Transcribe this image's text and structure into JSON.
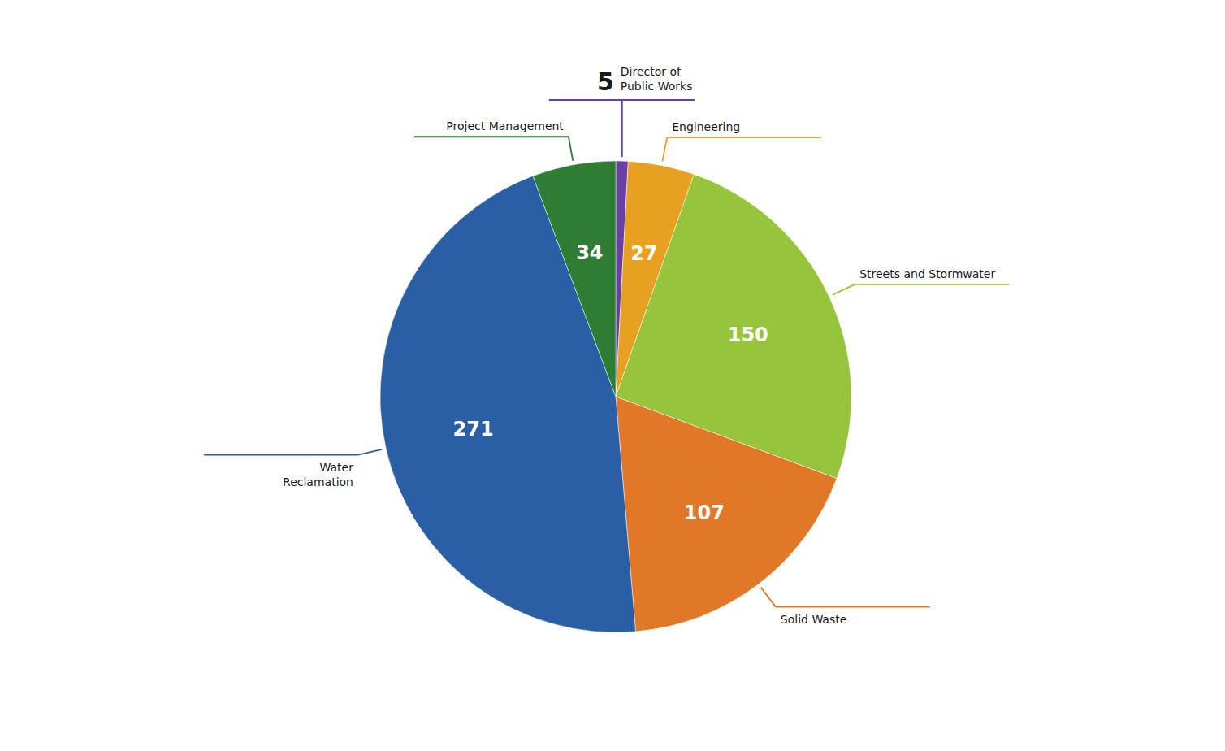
{
  "chart_data": {
    "type": "pie",
    "categories": [
      "Director of\nPublic Works",
      "Engineering",
      "Streets and Stormwater",
      "Solid Waste",
      "Water\nReclamation",
      "Project Management"
    ],
    "values": [
      5,
      27,
      150,
      107,
      271,
      34
    ],
    "colors": [
      "#6B3FA0",
      "#E8A020",
      "#96C43A",
      "#E07828",
      "#2B5FA5",
      "#2E7D32"
    ],
    "data_labels": true
  }
}
